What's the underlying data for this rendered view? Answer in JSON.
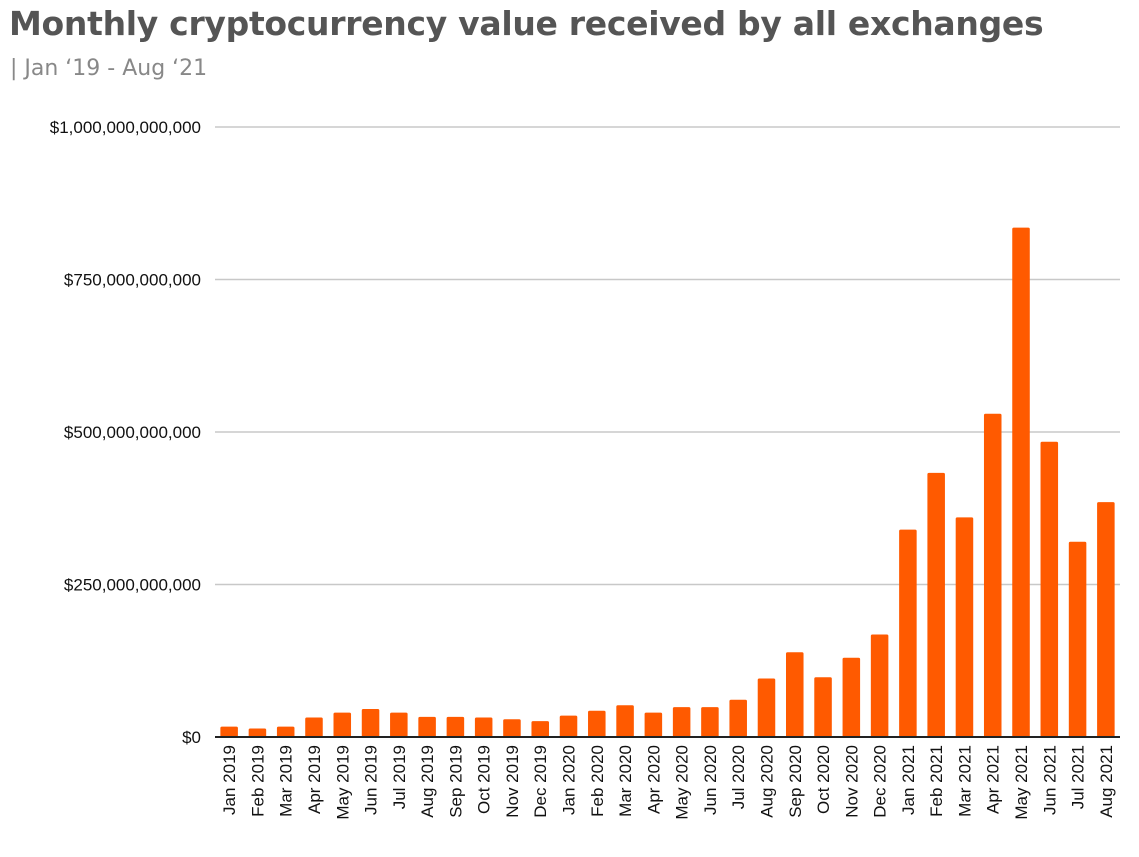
{
  "chart_data": {
    "type": "bar",
    "title": "Monthly cryptocurrency value received by all exchanges",
    "subtitle": "| Jan ‘19 - Aug ‘21",
    "xlabel": "",
    "ylabel": "",
    "ylim": [
      0,
      1000000000000
    ],
    "y_ticks": [
      0,
      250000000000,
      500000000000,
      750000000000,
      1000000000000
    ],
    "y_tick_labels": [
      "$0",
      "$250,000,000,000",
      "$500,000,000,000",
      "$750,000,000,000",
      "$1,000,000,000,000"
    ],
    "grid": true,
    "bar_color": "#ff5a00",
    "categories": [
      "Jan 2019",
      "Feb 2019",
      "Mar 2019",
      "Apr 2019",
      "May 2019",
      "Jun 2019",
      "Jul 2019",
      "Aug 2019",
      "Sep 2019",
      "Oct 2019",
      "Nov 2019",
      "Dec 2019",
      "Jan 2020",
      "Feb 2020",
      "Mar 2020",
      "Apr 2020",
      "May 2020",
      "Jun 2020",
      "Jul 2020",
      "Aug 2020",
      "Sep 2020",
      "Oct 2020",
      "Nov 2020",
      "Dec 2020",
      "Jan 2021",
      "Feb 2021",
      "Mar 2021",
      "Apr 2021",
      "May 2021",
      "Jun 2021",
      "Jul 2021",
      "Aug 2021"
    ],
    "values": [
      17000000000,
      14000000000,
      17000000000,
      32000000000,
      40000000000,
      46000000000,
      40000000000,
      33000000000,
      33000000000,
      32000000000,
      29000000000,
      26000000000,
      35000000000,
      43000000000,
      52000000000,
      40000000000,
      49000000000,
      49000000000,
      61000000000,
      96000000000,
      139000000000,
      98000000000,
      130000000000,
      168000000000,
      340000000000,
      433000000000,
      360000000000,
      530000000000,
      835000000000,
      484000000000,
      320000000000,
      385000000000
    ]
  }
}
